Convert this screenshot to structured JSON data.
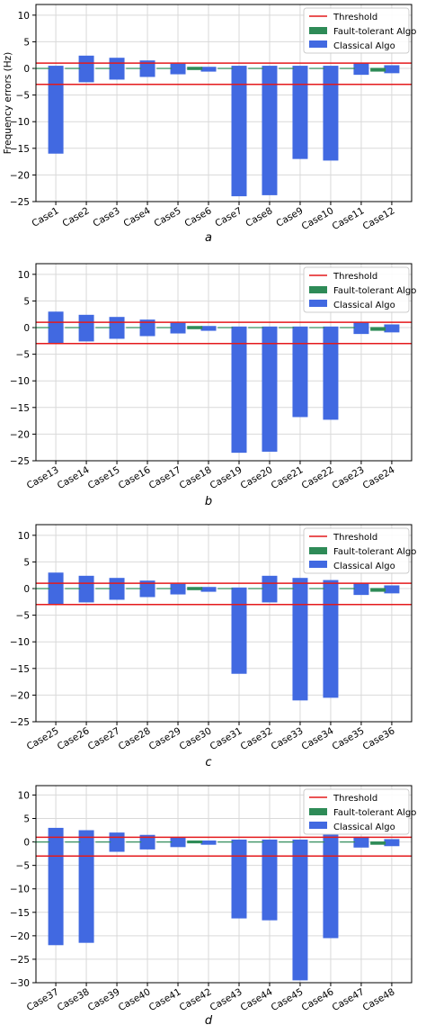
{
  "colors": {
    "threshold": "#e41a1c",
    "fault_tolerant": "#2e8b57",
    "classical": "#4169e1",
    "grid": "#d9d9d9"
  },
  "chart_data": [
    {
      "type": "bar",
      "sublabel": "a",
      "ylabel": "Frequency errors (Hz)",
      "ylim": [
        -25,
        12
      ],
      "yticks": [
        10,
        5,
        0,
        -5,
        -10,
        -15,
        -20,
        -25
      ],
      "grid": true,
      "legend": "top-right",
      "threshold": {
        "name": "Threshold",
        "values": [
          1,
          -3
        ]
      },
      "categories": [
        "Case1",
        "Case2",
        "Case3",
        "Case4",
        "Case5",
        "Case6",
        "Case7",
        "Case8",
        "Case9",
        "Case10",
        "Case11",
        "Case12"
      ],
      "series": [
        {
          "name": "Fault-tolerant Algo",
          "ranges": [
            [
              -0.1,
              0.1
            ],
            [
              -0.1,
              0.1
            ],
            [
              -0.1,
              0.1
            ],
            [
              -0.1,
              0.1
            ],
            [
              -0.1,
              0.1
            ],
            [
              -0.3,
              0.3
            ],
            [
              -0.1,
              0.1
            ],
            [
              -0.1,
              0.1
            ],
            [
              -0.1,
              0.1
            ],
            [
              -0.1,
              0.1
            ],
            [
              -0.1,
              0.1
            ],
            [
              -0.6,
              0.1
            ]
          ]
        },
        {
          "name": "Classical Algo",
          "ranges": [
            [
              -16,
              0.5
            ],
            [
              -2.6,
              2.4
            ],
            [
              -2.1,
              2
            ],
            [
              -1.6,
              1.5
            ],
            [
              -1.1,
              0.9
            ],
            [
              -0.6,
              0.3
            ],
            [
              -24,
              0.5
            ],
            [
              -23.8,
              0.5
            ],
            [
              -17,
              0.5
            ],
            [
              -17.3,
              0.5
            ],
            [
              -1.2,
              1.1
            ],
            [
              -0.9,
              0.6
            ]
          ]
        }
      ]
    },
    {
      "type": "bar",
      "sublabel": "b",
      "ylabel": "",
      "ylim": [
        -25,
        12
      ],
      "yticks": [
        10,
        5,
        0,
        -5,
        -10,
        -15,
        -20,
        -25
      ],
      "grid": true,
      "legend": "top-right",
      "threshold": {
        "name": "Threshold",
        "values": [
          1,
          -3
        ]
      },
      "categories": [
        "Case13",
        "Case14",
        "Case15",
        "Case16",
        "Case17",
        "Case18",
        "Case19",
        "Case20",
        "Case21",
        "Case22",
        "Case23",
        "Case24"
      ],
      "series": [
        {
          "name": "Fault-tolerant Algo",
          "ranges": [
            [
              -0.1,
              0.1
            ],
            [
              -0.1,
              0.1
            ],
            [
              -0.1,
              0.1
            ],
            [
              -0.1,
              0.1
            ],
            [
              -0.1,
              0.1
            ],
            [
              -0.3,
              0.3
            ],
            [
              -0.1,
              0.1
            ],
            [
              -0.1,
              0.1
            ],
            [
              -0.1,
              0.1
            ],
            [
              -0.1,
              0.1
            ],
            [
              -0.1,
              0.1
            ],
            [
              -0.6,
              0.1
            ]
          ]
        },
        {
          "name": "Classical Algo",
          "ranges": [
            [
              -3,
              3
            ],
            [
              -2.6,
              2.4
            ],
            [
              -2.1,
              2
            ],
            [
              -1.6,
              1.5
            ],
            [
              -1.1,
              0.9
            ],
            [
              -0.6,
              0.3
            ],
            [
              -23.5,
              0.2
            ],
            [
              -23.3,
              0.2
            ],
            [
              -16.8,
              0.2
            ],
            [
              -17.3,
              0.2
            ],
            [
              -1.2,
              1.1
            ],
            [
              -0.9,
              0.6
            ]
          ]
        }
      ]
    },
    {
      "type": "bar",
      "sublabel": "c",
      "ylabel": "",
      "ylim": [
        -25,
        12
      ],
      "yticks": [
        10,
        5,
        0,
        -5,
        -10,
        -15,
        -20,
        -25
      ],
      "grid": true,
      "legend": "top-right",
      "threshold": {
        "name": "Threshold",
        "values": [
          1,
          -3
        ]
      },
      "categories": [
        "Case25",
        "Case26",
        "Case27",
        "Case28",
        "Case29",
        "Case30",
        "Case31",
        "Case32",
        "Case33",
        "Case34",
        "Case35",
        "Case36"
      ],
      "series": [
        {
          "name": "Fault-tolerant Algo",
          "ranges": [
            [
              -0.1,
              0.1
            ],
            [
              -0.1,
              0.1
            ],
            [
              -0.1,
              0.1
            ],
            [
              -0.1,
              0.1
            ],
            [
              -0.1,
              0.1
            ],
            [
              -0.3,
              0.3
            ],
            [
              -0.1,
              0.1
            ],
            [
              -0.1,
              0.1
            ],
            [
              -0.1,
              0.1
            ],
            [
              -0.1,
              0.1
            ],
            [
              -0.1,
              0.1
            ],
            [
              -0.6,
              0.1
            ]
          ]
        },
        {
          "name": "Classical Algo",
          "ranges": [
            [
              -3,
              3
            ],
            [
              -2.6,
              2.4
            ],
            [
              -2.1,
              2
            ],
            [
              -1.6,
              1.5
            ],
            [
              -1.1,
              0.9
            ],
            [
              -0.6,
              0.3
            ],
            [
              -16,
              0.2
            ],
            [
              -2.6,
              2.4
            ],
            [
              -21,
              2
            ],
            [
              -20.5,
              1.6
            ],
            [
              -1.2,
              1.1
            ],
            [
              -0.9,
              0.6
            ]
          ]
        }
      ]
    },
    {
      "type": "bar",
      "sublabel": "d",
      "ylabel": "",
      "ylim": [
        -30,
        12
      ],
      "yticks": [
        10,
        5,
        0,
        -5,
        -10,
        -15,
        -20,
        -25,
        -30
      ],
      "grid": true,
      "legend": "top-right",
      "threshold": {
        "name": "Threshold",
        "values": [
          1,
          -3
        ]
      },
      "categories": [
        "Case37",
        "Case38",
        "Case39",
        "Case40",
        "Case41",
        "Case42",
        "Case43",
        "Case44",
        "Case45",
        "Case46",
        "Case47",
        "Case48"
      ],
      "series": [
        {
          "name": "Fault-tolerant Algo",
          "ranges": [
            [
              -0.1,
              0.1
            ],
            [
              -0.1,
              0.1
            ],
            [
              -0.1,
              0.1
            ],
            [
              -0.1,
              0.1
            ],
            [
              -0.1,
              0.1
            ],
            [
              -0.3,
              0.3
            ],
            [
              -0.1,
              0.1
            ],
            [
              -0.1,
              0.1
            ],
            [
              -0.1,
              0.1
            ],
            [
              -0.1,
              0.1
            ],
            [
              -0.1,
              0.1
            ],
            [
              -0.6,
              0.1
            ]
          ]
        },
        {
          "name": "Classical Algo",
          "ranges": [
            [
              -22,
              3
            ],
            [
              -21.5,
              2.5
            ],
            [
              -2.1,
              2
            ],
            [
              -1.6,
              1.5
            ],
            [
              -1.1,
              0.9
            ],
            [
              -0.6,
              0.3
            ],
            [
              -16.3,
              0.5
            ],
            [
              -16.7,
              0.5
            ],
            [
              -29.5,
              0.5
            ],
            [
              -20.5,
              1.6
            ],
            [
              -1.2,
              1.1
            ],
            [
              -0.9,
              0.6
            ]
          ]
        }
      ]
    }
  ]
}
